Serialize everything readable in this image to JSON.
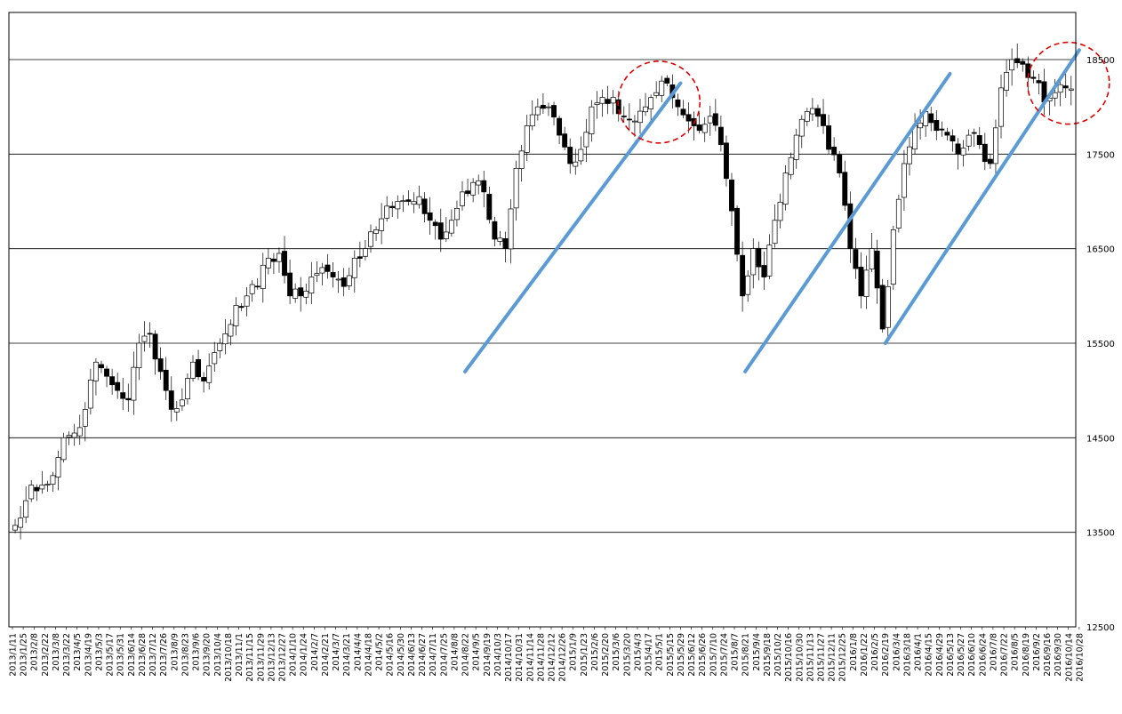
{
  "chart_data": {
    "type": "candlestick",
    "title": "",
    "xlabel": "",
    "ylabel": "",
    "ylim": [
      12500,
      18500
    ],
    "grid": "horizontal",
    "yticks": [
      "12500",
      "13500",
      "14500",
      "15500",
      "16500",
      "17500",
      "18500"
    ],
    "xtick_labels": [
      "2013/1/11",
      "2013/1/25",
      "2013/2/8",
      "2013/2/22",
      "2013/3/8",
      "2013/3/22",
      "2013/4/5",
      "2013/4/19",
      "2013/5/3",
      "2013/5/17",
      "2013/5/31",
      "2013/6/14",
      "2013/6/28",
      "2013/7/12",
      "2013/7/26",
      "2013/8/9",
      "2013/8/23",
      "2013/9/6",
      "2013/9/20",
      "2013/10/4",
      "2013/10/18",
      "2013/11/1",
      "2013/11/15",
      "2013/11/29",
      "2013/12/13",
      "2013/12/27",
      "2014/1/10",
      "2014/1/24",
      "2014/2/7",
      "2014/2/21",
      "2014/3/7",
      "2014/3/21",
      "2014/4/4",
      "2014/4/18",
      "2014/5/2",
      "2014/5/16",
      "2014/5/30",
      "2014/6/13",
      "2014/6/27",
      "2014/7/11",
      "2014/7/25",
      "2014/8/8",
      "2014/8/22",
      "2014/9/5",
      "2014/9/19",
      "2014/10/3",
      "2014/10/17",
      "2014/10/31",
      "2014/11/14",
      "2014/11/28",
      "2014/12/12",
      "2014/12/26",
      "2015/1/9",
      "2015/1/23",
      "2015/2/6",
      "2015/2/20",
      "2015/3/6",
      "2015/3/20",
      "2015/4/3",
      "2015/4/17",
      "2015/5/1",
      "2015/5/15",
      "2015/5/29",
      "2015/6/12",
      "2015/6/26",
      "2015/7/10",
      "2015/7/24",
      "2015/8/7",
      "2015/8/21",
      "2015/9/4",
      "2015/9/18",
      "2015/10/2",
      "2015/10/16",
      "2015/10/30",
      "2015/11/13",
      "2015/11/27",
      "2015/12/11",
      "2015/12/25",
      "2016/1/8",
      "2016/1/22",
      "2016/2/5",
      "2016/2/19",
      "2016/3/4",
      "2016/3/18",
      "2016/4/1",
      "2016/4/15",
      "2016/4/29",
      "2016/5/13",
      "2016/5/27",
      "2016/6/10",
      "2016/6/24",
      "2016/7/8",
      "2016/7/22",
      "2016/8/5",
      "2016/8/19",
      "2016/9/2",
      "2016/9/16",
      "2016/9/30",
      "2016/10/14",
      "2016/10/28"
    ],
    "close_by_tick": [
      13500,
      13650,
      14000,
      14000,
      14100,
      14500,
      14550,
      14800,
      15300,
      15150,
      15000,
      14900,
      15500,
      15600,
      15200,
      14800,
      14900,
      15300,
      15100,
      15400,
      15600,
      15900,
      16000,
      16100,
      16400,
      16450,
      16000,
      16000,
      16200,
      16300,
      16200,
      16100,
      16400,
      16500,
      16700,
      16950,
      17000,
      17000,
      17050,
      16800,
      16600,
      16800,
      17100,
      17200,
      17100,
      16600,
      16500,
      17350,
      17800,
      18000,
      18000,
      17700,
      17400,
      17550,
      18000,
      18100,
      18100,
      17900,
      17850,
      18000,
      18150,
      18250,
      18000,
      17850,
      17750,
      17900,
      17600,
      16900,
      16000,
      16500,
      16200,
      16800,
      17300,
      17700,
      17950,
      17900,
      17550,
      17300,
      16500,
      16000,
      16500,
      15650,
      16700,
      17400,
      17800,
      17950,
      17750,
      17700,
      17500,
      17700,
      17600,
      17400,
      18200,
      18500,
      18450,
      18300,
      18050,
      18150,
      18200,
      18150
    ],
    "trendlines": [
      {
        "from": [
          "2014/8/22",
          15200
        ],
        "to": [
          "2015/5/29",
          18250
        ]
      },
      {
        "from": [
          "2015/8/21",
          15200
        ],
        "to": [
          "2016/5/13",
          18350
        ]
      },
      {
        "from": [
          "2016/2/19",
          15500
        ],
        "to": [
          "2016/10/28",
          18600
        ]
      }
    ],
    "highlight_circles": [
      {
        "center": [
          "2015/5/1",
          18050
        ]
      },
      {
        "center": [
          "2016/10/14",
          18250
        ]
      }
    ],
    "colors": {
      "rising": "#ffffff",
      "falling": "#000000",
      "trendline": "#5b9bd5",
      "circle": "#e00000",
      "grid": "#000000"
    }
  }
}
